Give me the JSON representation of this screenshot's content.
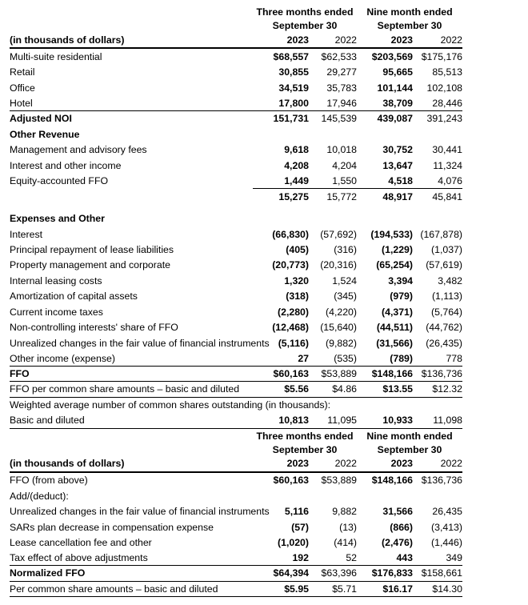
{
  "report": {
    "periods": [
      {
        "title": "Three months ended",
        "subtitle": "September 30"
      },
      {
        "title": "Nine month ended",
        "subtitle": "September 30"
      }
    ],
    "row_header_label": "(in thousands of dollars)",
    "year_labels": [
      "2023",
      "2022",
      "2023",
      "2022"
    ],
    "sections": [
      {
        "name": "ffo-statement",
        "rows": [
          {
            "label": "Multi-suite residential",
            "values": [
              "$68,557",
              "$62,533",
              "$203,569",
              "$175,176"
            ]
          },
          {
            "label": "Retail",
            "values": [
              "30,855",
              "29,277",
              "95,665",
              "85,513"
            ]
          },
          {
            "label": "Office",
            "values": [
              "34,519",
              "35,783",
              "101,144",
              "102,108"
            ]
          },
          {
            "label": "Hotel",
            "values": [
              "17,800",
              "17,946",
              "38,709",
              "28,446"
            ],
            "rule": "full"
          },
          {
            "label": "Adjusted NOI",
            "bold_label": true,
            "values": [
              "151,731",
              "145,539",
              "439,087",
              "391,243"
            ]
          },
          {
            "label": "Other Revenue",
            "bold_label": true,
            "values": [
              "",
              "",
              "",
              ""
            ]
          },
          {
            "label": "Management and advisory fees",
            "values": [
              "9,618",
              "10,018",
              "30,752",
              "30,441"
            ]
          },
          {
            "label": "Interest and other income",
            "values": [
              "4,208",
              "4,204",
              "13,647",
              "11,324"
            ]
          },
          {
            "label": "Equity-accounted FFO",
            "values": [
              "1,449",
              "1,550",
              "4,518",
              "4,076"
            ],
            "rule": "partial"
          },
          {
            "label": "",
            "values": [
              "15,275",
              "15,772",
              "48,917",
              "45,841"
            ],
            "gap_after": true
          },
          {
            "label": "Expenses and Other",
            "bold_label": true,
            "values": [
              "",
              "",
              "",
              ""
            ]
          },
          {
            "label": "Interest",
            "values": [
              "(66,830)",
              "(57,692)",
              "(194,533)",
              "(167,878)"
            ]
          },
          {
            "label": "Principal repayment of lease liabilities",
            "values": [
              "(405)",
              "(316)",
              "(1,229)",
              "(1,037)"
            ]
          },
          {
            "label": "Property management and corporate",
            "values": [
              "(20,773)",
              "(20,316)",
              "(65,254)",
              "(57,619)"
            ]
          },
          {
            "label": "Internal leasing costs",
            "values": [
              "1,320",
              "1,524",
              "3,394",
              "3,482"
            ]
          },
          {
            "label": "Amortization of capital assets",
            "values": [
              "(318)",
              "(345)",
              "(979)",
              "(1,113)"
            ]
          },
          {
            "label": "Current income taxes",
            "values": [
              "(2,280)",
              "(4,220)",
              "(4,371)",
              "(5,764)"
            ]
          },
          {
            "label": "Non-controlling interests' share of FFO",
            "values": [
              "(12,468)",
              "(15,640)",
              "(44,511)",
              "(44,762)"
            ]
          },
          {
            "label": "Unrealized changes in the fair value of financial instruments",
            "values": [
              "(5,116)",
              "(9,882)",
              "(31,566)",
              "(26,435)"
            ]
          },
          {
            "label": "Other income (expense)",
            "values": [
              "27",
              "(535)",
              "(789)",
              "778"
            ],
            "rule": "full"
          },
          {
            "label": "FFO",
            "bold_label": true,
            "values": [
              "$60,163",
              "$53,889",
              "$148,166",
              "$136,736"
            ],
            "rule": "full"
          },
          {
            "label": "FFO per common share amounts – basic and diluted",
            "values": [
              "$5.56",
              "$4.86",
              "$13.55",
              "$12.32"
            ],
            "rule": "full"
          },
          {
            "label": "Weighted average number of common shares outstanding (in thousands):",
            "full_span": true
          },
          {
            "label": "Basic and diluted",
            "values": [
              "10,813",
              "11,095",
              "10,933",
              "11,098"
            ],
            "rule": "full"
          }
        ]
      },
      {
        "name": "normalized-ffo-reconciliation",
        "rows": [
          {
            "label": "FFO (from above)",
            "values": [
              "$60,163",
              "$53,889",
              "$148,166",
              "$136,736"
            ]
          },
          {
            "label": "Add/(deduct):",
            "full_span": true
          },
          {
            "label": "Unrealized changes in the fair value of financial instruments",
            "values": [
              "5,116",
              "9,882",
              "31,566",
              "26,435"
            ]
          },
          {
            "label": "SARs plan decrease in compensation expense",
            "values": [
              "(57)",
              "(13)",
              "(866)",
              "(3,413)"
            ]
          },
          {
            "label": "Lease cancellation fee and other",
            "values": [
              "(1,020)",
              "(414)",
              "(2,476)",
              "(1,446)"
            ]
          },
          {
            "label": "Tax effect of above adjustments",
            "values": [
              "192",
              "52",
              "443",
              "349"
            ],
            "rule": "full"
          },
          {
            "label": "Normalized FFO",
            "bold_label": true,
            "values": [
              "$64,394",
              "$63,396",
              "$176,833",
              "$158,661"
            ],
            "rule": "full"
          },
          {
            "label": "Per common share amounts – basic and diluted",
            "values": [
              "$5.95",
              "$5.71",
              "$16.17",
              "$14.30"
            ],
            "rule": "full"
          }
        ]
      }
    ]
  }
}
